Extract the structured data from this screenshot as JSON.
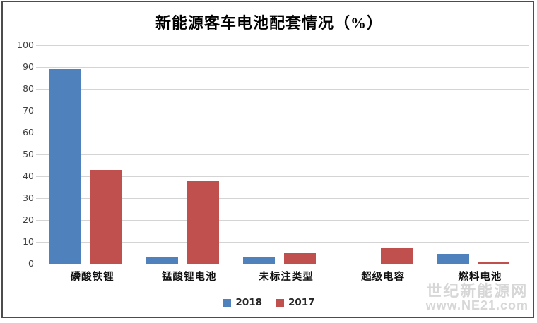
{
  "title": "新能源客车电池配套情况（%）",
  "watermark": {
    "line1": "世纪新能源网",
    "line2": "www.NE21.com"
  },
  "colors": {
    "series_2018": "#4f81bd",
    "series_2017": "#c0504d",
    "gridline": "#d4d4d4",
    "axis_baseline": "#8f8f8f",
    "frame_border": "#4c4c4c"
  },
  "chart_data": {
    "type": "bar",
    "title": "新能源客车电池配套情况（%）",
    "categories": [
      "磷酸铁锂",
      "锰酸锂电池",
      "未标注类型",
      "超级电容",
      "燃料电池"
    ],
    "series": [
      {
        "name": "2018",
        "color": "#4f81bd",
        "values": [
          89,
          3,
          3,
          0,
          4.5
        ]
      },
      {
        "name": "2017",
        "color": "#c0504d",
        "values": [
          43,
          38,
          5,
          7,
          1
        ]
      }
    ],
    "xlabel": "",
    "ylabel": "",
    "ylim": [
      0,
      100
    ],
    "ytick_step": 10,
    "grid": true,
    "legend_position": "bottom"
  }
}
